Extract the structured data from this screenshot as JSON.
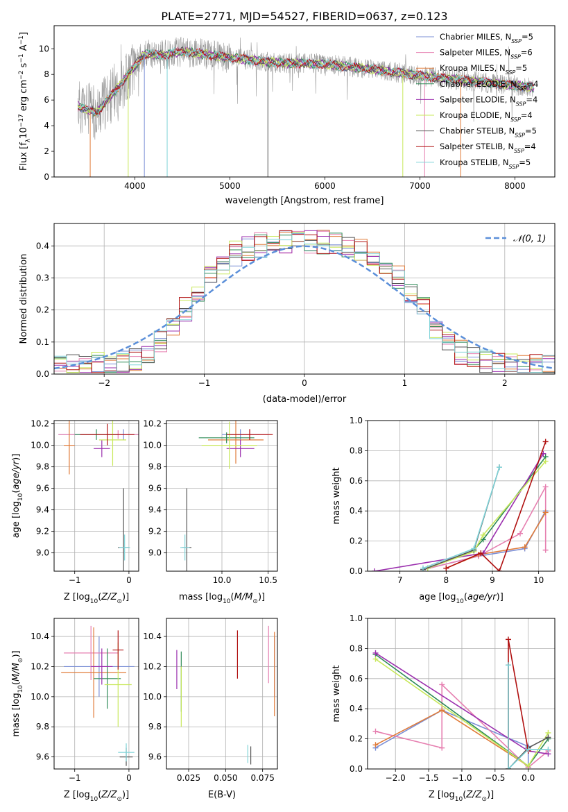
{
  "figure": {
    "title": "PLATE=2771, MJD=54527, FIBERID=0637, z=0.123"
  },
  "colors": {
    "chabrier_miles": "#7b8fd6",
    "salpeter_miles": "#e67fb0",
    "kroupa_miles": "#e07b39",
    "chabrier_elodie": "#2e8b57",
    "salpeter_elodie": "#9b2fae",
    "kroupa_elodie": "#c8e85a",
    "chabrier_stelib": "#555555",
    "salpeter_stelib": "#b01010",
    "kroupa_stelib": "#7fd3d8",
    "data": "#9a9a9a",
    "normal": "#5b8fd9"
  },
  "legend_spectrum": [
    "Chabrier MILES, N_SSP=5",
    "Salpeter MILES, N_SSP=6",
    "Kroupa MILES, N_SSP=5",
    "Chabrier ELODIE, N_SSP=4",
    "Salpeter ELODIE, N_SSP=4",
    "Kroupa ELODIE, N_SSP=4",
    "Chabrier STELIB, N_SSP=5",
    "Salpeter STELIB, N_SSP=4",
    "Kroupa STELIB, N_SSP=5"
  ],
  "legend_hist": "𝒩(0, 1)",
  "chart_data": [
    {
      "id": "spectrum",
      "type": "line",
      "xlabel": "wavelength [Angstrom, rest frame]",
      "ylabel": "Flux [f_λ 10^-17 erg cm^-2 s^-1 A^-1]",
      "xlim": [
        3150,
        8420
      ],
      "ylim": [
        0,
        11.8
      ],
      "xticks": [
        4000,
        5000,
        6000,
        7000,
        8000
      ],
      "yticks": [
        0,
        2,
        4,
        6,
        8,
        10
      ],
      "continuum_x": [
        3400,
        3600,
        3800,
        3950,
        4100,
        4300,
        4500,
        5000,
        5500,
        6000,
        6500,
        7000,
        7500,
        8200
      ],
      "continuum_y": [
        5.5,
        5.0,
        6.8,
        8.2,
        9.6,
        9.5,
        9.8,
        9.3,
        8.9,
        8.8,
        8.4,
        7.9,
        7.5,
        7.0
      ]
    },
    {
      "id": "residuals",
      "type": "histogram",
      "xlabel": "(data-model)/error",
      "ylabel": "Normed distribution",
      "xlim": [
        -2.5,
        2.5
      ],
      "ylim": [
        0,
        0.47
      ],
      "xticks": [
        -2,
        -1,
        0,
        1,
        2
      ],
      "yticks": [
        0.0,
        0.1,
        0.2,
        0.3,
        0.4
      ],
      "bins": 40
    },
    {
      "id": "age_vs_Z",
      "type": "errorbar",
      "xlabel": "Z [log10(Z/Z☉)]",
      "ylabel": "age [log10(age/yr)]",
      "xlim": [
        -1.38,
        0.18
      ],
      "ylim": [
        8.83,
        10.23
      ],
      "xticks": [
        -1,
        0
      ],
      "yticks": [
        9.0,
        9.2,
        9.4,
        9.6,
        9.8,
        10.0,
        10.2
      ],
      "points": [
        {
          "m": "chabrier_miles",
          "x": -0.1,
          "y": 10.1,
          "xerr": 1.2,
          "yerr": 0.05
        },
        {
          "m": "salpeter_miles",
          "x": -0.2,
          "y": 10.1,
          "xerr": 1.1,
          "yerr": 0.04
        },
        {
          "m": "kroupa_miles",
          "x": -1.1,
          "y": 10.0,
          "xerr": 0.1,
          "yerr": 0.27
        },
        {
          "m": "chabrier_elodie",
          "x": -0.6,
          "y": 10.1,
          "xerr": 0.4,
          "yerr": 0.05
        },
        {
          "m": "salpeter_elodie",
          "x": -0.5,
          "y": 9.97,
          "xerr": 0.15,
          "yerr": 0.08
        },
        {
          "m": "kroupa_elodie",
          "x": -0.3,
          "y": 10.05,
          "xerr": 0.25,
          "yerr": 0.24
        },
        {
          "m": "chabrier_stelib",
          "x": -0.1,
          "y": 9.05,
          "xerr": 0.1,
          "yerr": 0.55
        },
        {
          "m": "salpeter_stelib",
          "x": -0.4,
          "y": 10.1,
          "xerr": 0.5,
          "yerr": 0.1
        },
        {
          "m": "kroupa_stelib",
          "x": -0.08,
          "y": 9.05,
          "xerr": 0.1,
          "yerr": 0.12
        }
      ]
    },
    {
      "id": "age_vs_mass",
      "type": "errorbar",
      "xlabel": "mass [log10(M/M☉)]",
      "ylabel": "",
      "xlim": [
        9.4,
        10.6
      ],
      "ylim": [
        8.83,
        10.23
      ],
      "xticks": [
        10.0,
        10.5
      ],
      "yticks": [
        9.0,
        9.2,
        9.4,
        9.6,
        9.8,
        10.0,
        10.2
      ],
      "points": [
        {
          "m": "chabrier_miles",
          "x": 10.2,
          "y": 10.1,
          "xerr": 0.2,
          "yerr": 0.05
        },
        {
          "m": "salpeter_miles",
          "x": 10.3,
          "y": 10.1,
          "xerr": 0.2,
          "yerr": 0.05
        },
        {
          "m": "kroupa_miles",
          "x": 10.15,
          "y": 10.05,
          "xerr": 0.3,
          "yerr": 0.22
        },
        {
          "m": "chabrier_elodie",
          "x": 10.05,
          "y": 10.07,
          "xerr": 0.3,
          "yerr": 0.05
        },
        {
          "m": "salpeter_elodie",
          "x": 10.2,
          "y": 9.97,
          "xerr": 0.15,
          "yerr": 0.08
        },
        {
          "m": "kroupa_elodie",
          "x": 10.08,
          "y": 10.0,
          "xerr": 0.3,
          "yerr": 0.22
        },
        {
          "m": "chabrier_stelib",
          "x": 9.62,
          "y": 9.05,
          "xerr": 0.05,
          "yerr": 0.55
        },
        {
          "m": "salpeter_stelib",
          "x": 10.3,
          "y": 10.1,
          "xerr": 0.25,
          "yerr": 0.05
        },
        {
          "m": "kroupa_stelib",
          "x": 9.6,
          "y": 9.05,
          "xerr": 0.05,
          "yerr": 0.12
        }
      ]
    },
    {
      "id": "weight_vs_age",
      "type": "line",
      "xlabel": "age [log10(age/yr)]",
      "ylabel": "mass weight",
      "xlim": [
        6.3,
        10.35
      ],
      "ylim": [
        0,
        1
      ],
      "xticks": [
        7,
        8,
        9,
        10
      ],
      "yticks": [
        0.0,
        0.2,
        0.4,
        0.6,
        0.8,
        1.0
      ],
      "series": [
        {
          "m": "chabrier_miles",
          "x": [
            7.5,
            8.7,
            9.7,
            10.15
          ],
          "y": [
            0.01,
            0.1,
            0.15,
            0.4
          ]
        },
        {
          "m": "salpeter_miles",
          "x": [
            7.5,
            8.7,
            9.6,
            10.15,
            10.15
          ],
          "y": [
            0.01,
            0.1,
            0.25,
            0.56,
            0.14
          ]
        },
        {
          "m": "kroupa_miles",
          "x": [
            8.0,
            8.7,
            9.7,
            10.15
          ],
          "y": [
            0.02,
            0.11,
            0.16,
            0.39
          ]
        },
        {
          "m": "chabrier_elodie",
          "x": [
            7.6,
            8.6,
            8.8,
            10.15
          ],
          "y": [
            0.02,
            0.14,
            0.21,
            0.76
          ]
        },
        {
          "m": "salpeter_elodie",
          "x": [
            6.45,
            8.8,
            10.1
          ],
          "y": [
            0.0,
            0.12,
            0.78
          ]
        },
        {
          "m": "kroupa_elodie",
          "x": [
            7.6,
            8.6,
            8.8,
            10.15
          ],
          "y": [
            0.02,
            0.13,
            0.24,
            0.73
          ]
        },
        {
          "m": "chabrier_stelib",
          "x": [
            7.5,
            8.6,
            9.15
          ],
          "y": [
            0.01,
            0.14,
            0.69
          ]
        },
        {
          "m": "salpeter_stelib",
          "x": [
            8.0,
            8.75,
            9.15,
            10.15
          ],
          "y": [
            0.02,
            0.12,
            0.0,
            0.86
          ]
        },
        {
          "m": "kroupa_stelib",
          "x": [
            7.5,
            8.6,
            9.15
          ],
          "y": [
            0.02,
            0.15,
            0.69
          ]
        }
      ]
    },
    {
      "id": "mass_vs_Z",
      "type": "errorbar",
      "xlabel": "Z [log10(Z/Z☉)]",
      "ylabel": "mass [log10(M/M☉)]",
      "xlim": [
        -1.38,
        0.18
      ],
      "ylim": [
        9.52,
        10.52
      ],
      "xticks": [
        -1,
        0
      ],
      "yticks": [
        9.6,
        9.8,
        10.0,
        10.2,
        10.4
      ],
      "points": [
        {
          "m": "chabrier_miles",
          "x": -0.55,
          "y": 10.2,
          "xerr": 0.65,
          "yerr": 0.2
        },
        {
          "m": "salpeter_miles",
          "x": -0.7,
          "y": 10.29,
          "xerr": 0.5,
          "yerr": 0.18
        },
        {
          "m": "kroupa_miles",
          "x": -0.65,
          "y": 10.16,
          "xerr": 0.6,
          "yerr": 0.3
        },
        {
          "m": "chabrier_elodie",
          "x": -0.4,
          "y": 10.12,
          "xerr": 0.25,
          "yerr": 0.2
        },
        {
          "m": "salpeter_elodie",
          "x": -0.5,
          "y": 10.2,
          "xerr": 0.2,
          "yerr": 0.12
        },
        {
          "m": "kroupa_elodie",
          "x": -0.2,
          "y": 10.08,
          "xerr": 0.25,
          "yerr": 0.28
        },
        {
          "m": "chabrier_stelib",
          "x": -0.05,
          "y": 9.6,
          "xerr": 0.12,
          "yerr": 0.06
        },
        {
          "m": "salpeter_stelib",
          "x": -0.2,
          "y": 10.31,
          "xerr": 0.1,
          "yerr": 0.13
        },
        {
          "m": "kroupa_stelib",
          "x": -0.05,
          "y": 9.63,
          "xerr": 0.15,
          "yerr": 0.06
        }
      ]
    },
    {
      "id": "mass_vs_ebv",
      "type": "errorbar",
      "xlabel": "E(B-V)",
      "ylabel": "",
      "xlim": [
        0.01,
        0.085
      ],
      "ylim": [
        9.52,
        10.52
      ],
      "xticks": [
        0.025,
        0.05,
        0.075
      ],
      "yticks": [
        9.6,
        9.8,
        10.0,
        10.2,
        10.4
      ],
      "points": [
        {
          "m": "chabrier_miles",
          "x": 0.083,
          "y": 10.2,
          "xerr": 0,
          "yerr": 0.2
        },
        {
          "m": "salpeter_miles",
          "x": 0.079,
          "y": 10.28,
          "xerr": 0,
          "yerr": 0.19
        },
        {
          "m": "kroupa_miles",
          "x": 0.083,
          "y": 10.15,
          "xerr": 0,
          "yerr": 0.28
        },
        {
          "m": "chabrier_elodie",
          "x": 0.02,
          "y": 10.1,
          "xerr": 0,
          "yerr": 0.2
        },
        {
          "m": "salpeter_elodie",
          "x": 0.017,
          "y": 10.18,
          "xerr": 0,
          "yerr": 0.13
        },
        {
          "m": "kroupa_elodie",
          "x": 0.02,
          "y": 10.0,
          "xerr": 0,
          "yerr": 0.2
        },
        {
          "m": "chabrier_stelib",
          "x": 0.067,
          "y": 9.61,
          "xerr": 0,
          "yerr": 0.06
        },
        {
          "m": "salpeter_stelib",
          "x": 0.058,
          "y": 10.28,
          "xerr": 0,
          "yerr": 0.16
        },
        {
          "m": "kroupa_stelib",
          "x": 0.065,
          "y": 9.62,
          "xerr": 0,
          "yerr": 0.06
        }
      ]
    },
    {
      "id": "weight_vs_Z",
      "type": "line",
      "xlabel": "Z [log10(Z/Z☉)]",
      "ylabel": "mass weight",
      "xlim": [
        -2.42,
        0.4
      ],
      "ylim": [
        0,
        1
      ],
      "xticks": [
        -2.0,
        -1.5,
        -1.0,
        -0.5,
        0.0
      ],
      "yticks": [
        0.0,
        0.2,
        0.4,
        0.6,
        0.8,
        1.0
      ],
      "series": [
        {
          "m": "chabrier_miles",
          "x": [
            -2.3,
            -1.3,
            0.0,
            0.0
          ],
          "y": [
            0.14,
            0.39,
            0.15,
            0.01
          ]
        },
        {
          "m": "salpeter_miles",
          "x": [
            -2.3,
            -1.3,
            -1.3,
            0.0,
            0.3
          ],
          "y": [
            0.25,
            0.14,
            0.56,
            0.01,
            0.12
          ]
        },
        {
          "m": "kroupa_miles",
          "x": [
            -2.3,
            -1.3,
            0.0
          ],
          "y": [
            0.16,
            0.39,
            0.02
          ]
        },
        {
          "m": "chabrier_elodie",
          "x": [
            -2.3,
            0.0,
            0.3
          ],
          "y": [
            0.76,
            0.02,
            0.2
          ]
        },
        {
          "m": "salpeter_elodie",
          "x": [
            -2.3,
            0.0,
            0.3
          ],
          "y": [
            0.77,
            0.12,
            0.1
          ]
        },
        {
          "m": "kroupa_elodie",
          "x": [
            -2.3,
            0.0,
            0.3
          ],
          "y": [
            0.73,
            0.02,
            0.24
          ]
        },
        {
          "m": "chabrier_stelib",
          "x": [
            -0.3,
            -0.3,
            0.0,
            0.3
          ],
          "y": [
            0.69,
            0.0,
            0.14,
            0.21
          ]
        },
        {
          "m": "salpeter_stelib",
          "x": [
            -0.3,
            -0.3,
            0.0
          ],
          "y": [
            0.0,
            0.86,
            0.12
          ]
        },
        {
          "m": "kroupa_stelib",
          "x": [
            -0.3,
            -0.3,
            0.0,
            0.3
          ],
          "y": [
            0.69,
            0.0,
            0.13,
            0.13
          ]
        }
      ]
    }
  ]
}
